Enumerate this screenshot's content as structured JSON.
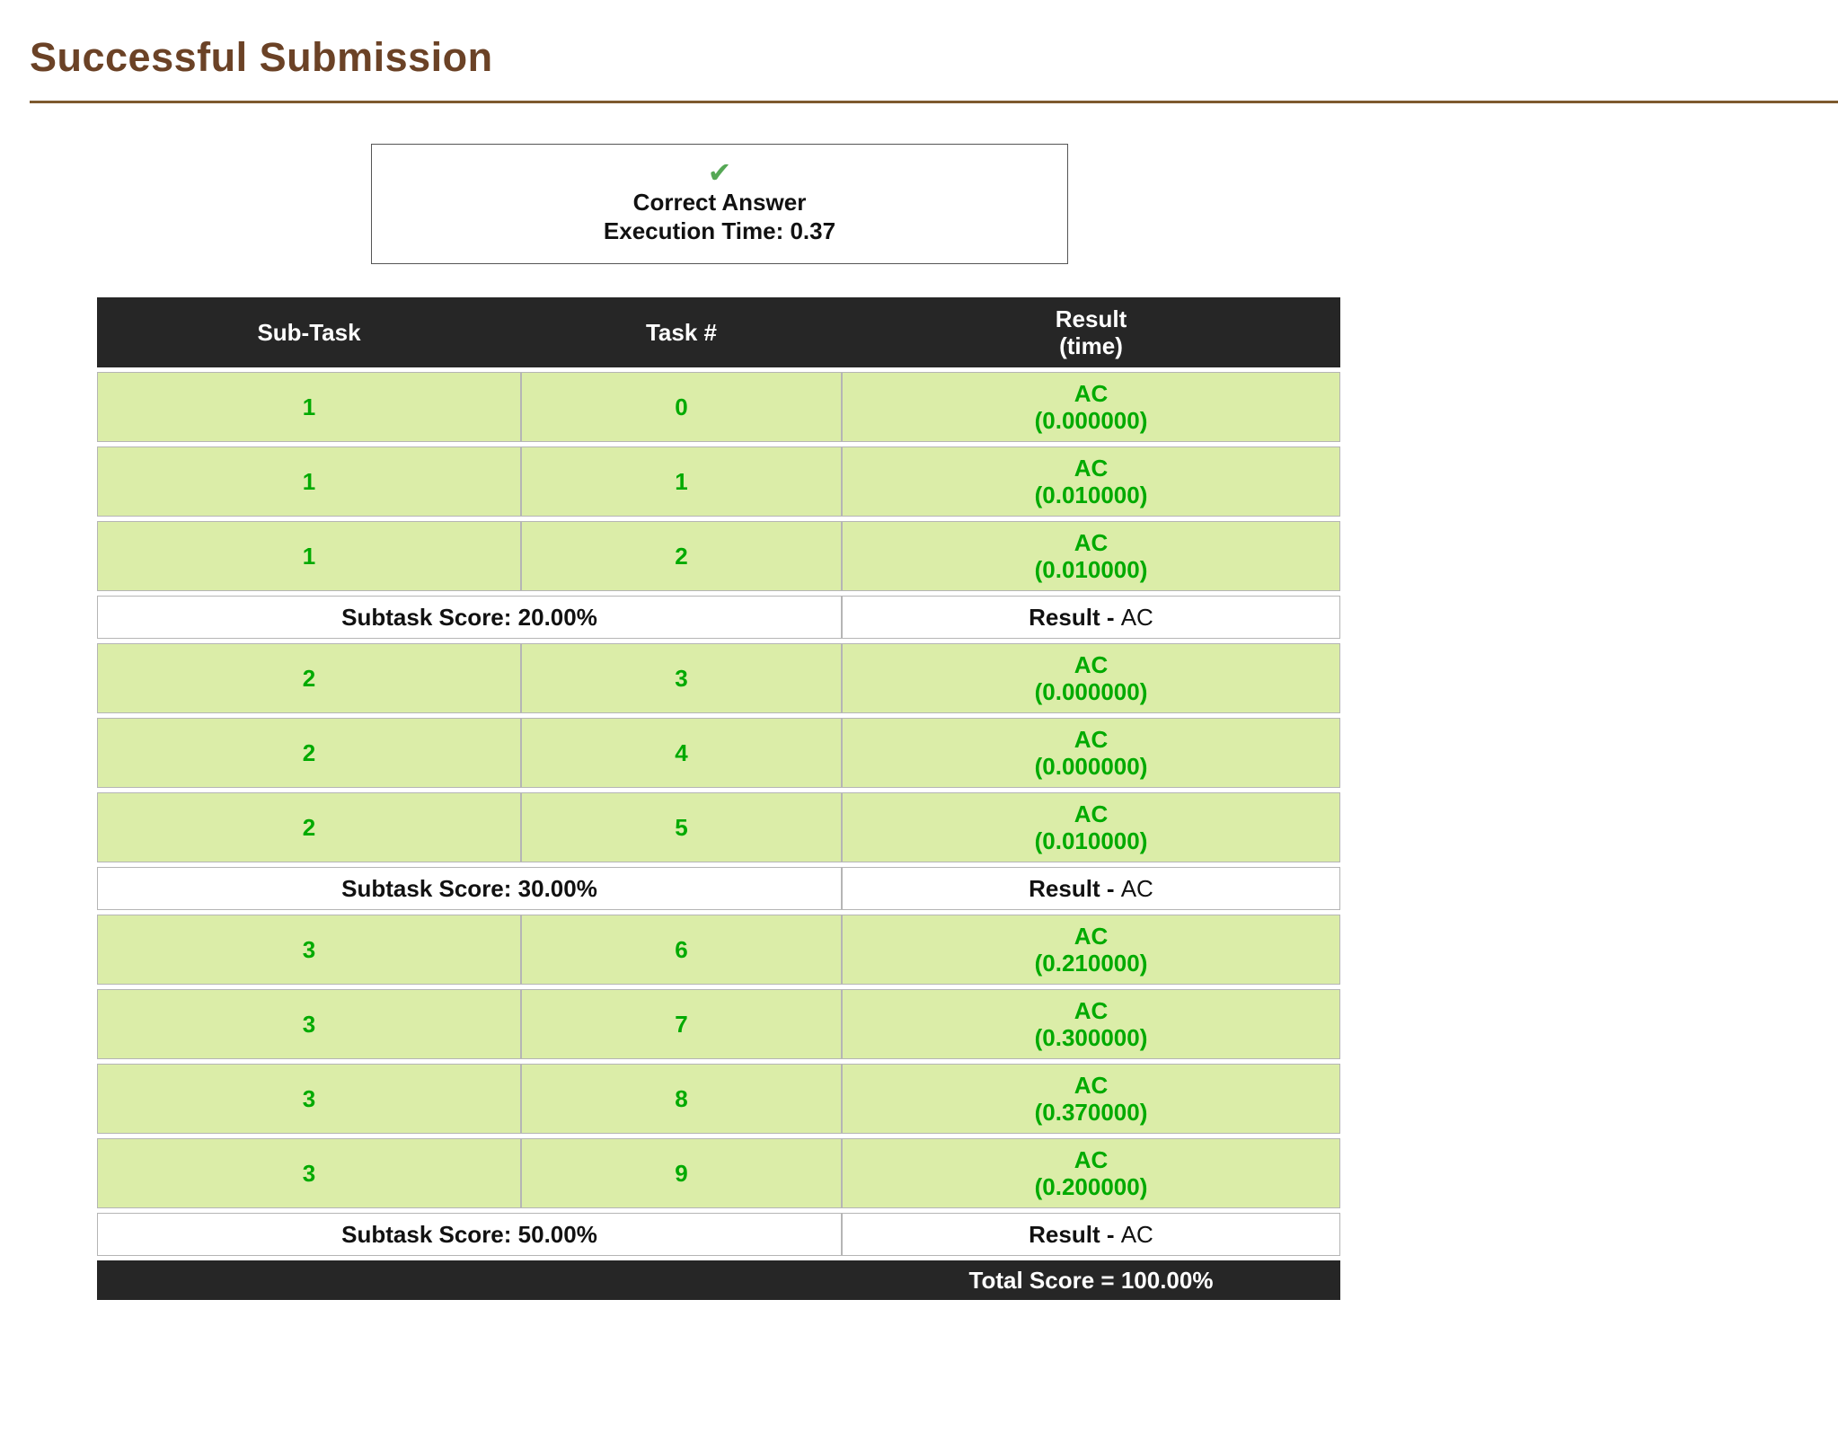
{
  "page": {
    "title": "Successful Submission"
  },
  "verdict": {
    "check_icon": "✔",
    "line1": "Correct Answer",
    "line2": "Execution Time: 0.37"
  },
  "table": {
    "headers": {
      "subtask": "Sub-Task",
      "task": "Task #",
      "result_line1": "Result",
      "result_line2": "(time)"
    },
    "groups": [
      {
        "rows": [
          {
            "subtask": "1",
            "task": "0",
            "result": "AC",
            "time": "(0.000000)"
          },
          {
            "subtask": "1",
            "task": "1",
            "result": "AC",
            "time": "(0.010000)"
          },
          {
            "subtask": "1",
            "task": "2",
            "result": "AC",
            "time": "(0.010000)"
          }
        ],
        "score_label": "Subtask Score: 20.00%",
        "result_label": "Result -",
        "result_value": "AC"
      },
      {
        "rows": [
          {
            "subtask": "2",
            "task": "3",
            "result": "AC",
            "time": "(0.000000)"
          },
          {
            "subtask": "2",
            "task": "4",
            "result": "AC",
            "time": "(0.000000)"
          },
          {
            "subtask": "2",
            "task": "5",
            "result": "AC",
            "time": "(0.010000)"
          }
        ],
        "score_label": "Subtask Score: 30.00%",
        "result_label": "Result -",
        "result_value": "AC"
      },
      {
        "rows": [
          {
            "subtask": "3",
            "task": "6",
            "result": "AC",
            "time": "(0.210000)"
          },
          {
            "subtask": "3",
            "task": "7",
            "result": "AC",
            "time": "(0.300000)"
          },
          {
            "subtask": "3",
            "task": "8",
            "result": "AC",
            "time": "(0.370000)"
          },
          {
            "subtask": "3",
            "task": "9",
            "result": "AC",
            "time": "(0.200000)"
          }
        ],
        "score_label": "Subtask Score: 50.00%",
        "result_label": "Result -",
        "result_value": "AC"
      }
    ],
    "footer": {
      "total_label": "Total Score = 100.00%"
    }
  },
  "colors": {
    "title_brown": "#6b4226",
    "rule_brown": "#7d5a2e",
    "header_bg": "#262626",
    "row_green_bg": "#dbeda8",
    "text_green": "#00aa00",
    "check_green": "#55a855",
    "border_gray": "#b5b5b5"
  }
}
